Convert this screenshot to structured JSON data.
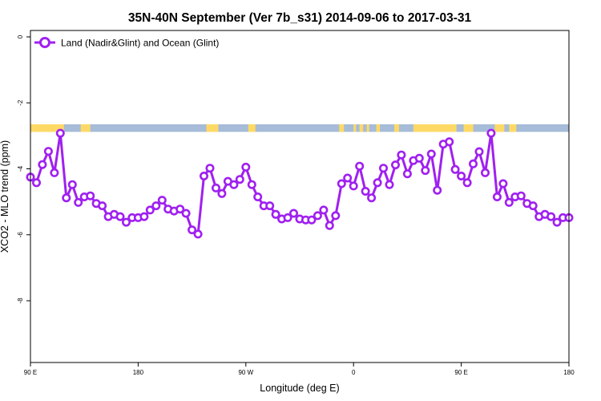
{
  "chart_data": {
    "type": "line",
    "title": "35N-40N September (Ver 7b_s31)   2014-09-06 to 2017-03-31",
    "xlabel": "Longitude (deg E)",
    "ylabel": "XCO2 - MLO trend (ppm)",
    "xlim": [
      90,
      540
    ],
    "ylim": [
      0,
      -10
    ],
    "xticks": [
      {
        "value": 90,
        "label": "90 E"
      },
      {
        "value": 180,
        "label": "180"
      },
      {
        "value": 270,
        "label": "90 W"
      },
      {
        "value": 360,
        "label": "0"
      },
      {
        "value": 450,
        "label": "90 E"
      },
      {
        "value": 540,
        "label": "180"
      }
    ],
    "yticks": [
      {
        "value": 0,
        "label": "0"
      },
      {
        "value": -2,
        "label": "-2"
      },
      {
        "value": -4,
        "label": "-4"
      },
      {
        "value": -6,
        "label": "-6"
      },
      {
        "value": -8,
        "label": "-8"
      }
    ],
    "grid": false,
    "legend_position": "top-left",
    "colors": {
      "series": "#a020f0",
      "land": "#ffd966",
      "ocean": "#a6bcd8"
    },
    "land_ocean_strip": {
      "y_top": -2.65,
      "y_bottom": -2.88,
      "land_segments": [
        [
          90,
          118
        ],
        [
          132,
          140
        ],
        [
          237,
          247
        ],
        [
          272,
          278
        ],
        [
          348,
          352
        ],
        [
          360,
          362
        ],
        [
          365,
          368
        ],
        [
          371,
          373
        ],
        [
          379,
          382
        ],
        [
          394,
          398
        ],
        [
          410,
          446
        ],
        [
          452,
          460
        ],
        [
          478,
          486
        ],
        [
          490,
          496
        ]
      ]
    },
    "series": [
      {
        "name": "Land (Nadir&Glint) and Ocean (Glint)",
        "x": [
          90,
          95,
          100,
          105,
          110,
          115,
          120,
          125,
          130,
          135,
          140,
          145,
          150,
          155,
          160,
          165,
          170,
          175,
          180,
          185,
          190,
          195,
          200,
          205,
          210,
          215,
          220,
          225,
          230,
          235,
          240,
          245,
          250,
          255,
          260,
          265,
          270,
          275,
          280,
          285,
          290,
          295,
          300,
          305,
          310,
          315,
          320,
          325,
          330,
          335,
          340,
          345,
          350,
          355,
          360,
          365,
          370,
          375,
          380,
          385,
          390,
          395,
          400,
          405,
          410,
          415,
          420,
          425,
          430,
          435,
          440,
          445,
          450,
          455,
          460,
          465,
          470,
          475,
          480,
          485,
          490,
          495,
          500,
          505,
          510,
          515,
          520,
          525,
          530,
          535,
          540
        ],
        "y": [
          -4.25,
          -4.42,
          -3.87,
          -3.47,
          -4.12,
          -2.92,
          -4.88,
          -4.48,
          -5.02,
          -4.85,
          -4.82,
          -5.05,
          -5.12,
          -5.45,
          -5.38,
          -5.45,
          -5.62,
          -5.48,
          -5.48,
          -5.45,
          -5.25,
          -5.12,
          -4.95,
          -5.22,
          -5.28,
          -5.22,
          -5.35,
          -5.85,
          -5.98,
          -4.22,
          -3.98,
          -4.58,
          -4.75,
          -4.38,
          -4.48,
          -4.32,
          -3.95,
          -4.48,
          -4.85,
          -5.12,
          -5.12,
          -5.38,
          -5.52,
          -5.48,
          -5.35,
          -5.52,
          -5.55,
          -5.55,
          -5.42,
          -5.25,
          -5.72,
          -5.42,
          -4.45,
          -4.28,
          -4.52,
          -3.92,
          -4.68,
          -4.88,
          -4.42,
          -3.98,
          -4.48,
          -3.88,
          -3.58,
          -4.15,
          -3.75,
          -3.68,
          -4.05,
          -3.55,
          -4.65,
          -3.25,
          -3.18,
          -4.02,
          -4.22,
          -4.42,
          -3.85,
          -3.48,
          -4.12,
          -2.92,
          -4.85,
          -4.45,
          -5.02,
          -4.85,
          -4.82,
          -5.05,
          -5.12,
          -5.45,
          -5.38,
          -5.45,
          -5.62,
          -5.48,
          -5.48
        ]
      }
    ]
  }
}
